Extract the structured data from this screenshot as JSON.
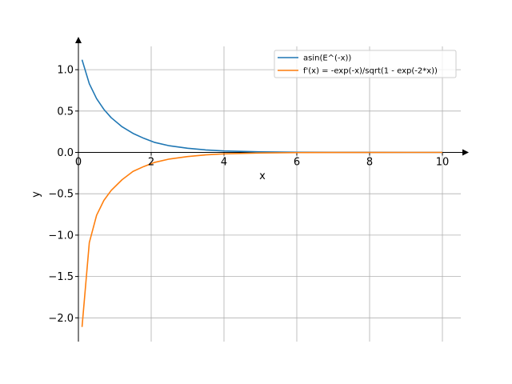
{
  "chart_data": {
    "type": "line",
    "title": "",
    "xlabel": "x",
    "ylabel": "y",
    "xlim": [
      0,
      10.5
    ],
    "ylim": [
      -2.25,
      1.3
    ],
    "grid": true,
    "legend_position": "top-right",
    "x_ticks": [
      0,
      2,
      4,
      6,
      8,
      10
    ],
    "x_tick_labels": [
      "0",
      "2",
      "4",
      "6",
      "8",
      "10"
    ],
    "y_ticks": [
      1.0,
      0.5,
      0.0,
      -0.5,
      -1.0,
      -1.5,
      -2.0
    ],
    "y_tick_labels": [
      "1.0",
      "0.5",
      "0.0",
      "−0.5",
      "−1.0",
      "−1.5",
      "−2.0"
    ],
    "series": [
      {
        "name": "asin(E^(-x))",
        "color": "#1f77b4",
        "x": [
          0.1,
          0.3,
          0.5,
          0.7,
          0.9,
          1.2,
          1.5,
          1.8,
          2.1,
          2.5,
          3.0,
          3.5,
          4.0,
          5.0,
          6.0,
          7.0,
          8.0,
          9.0,
          10.0
        ],
        "y": [
          1.12,
          0.83,
          0.65,
          0.52,
          0.42,
          0.31,
          0.23,
          0.17,
          0.12,
          0.08,
          0.05,
          0.03,
          0.018,
          0.007,
          0.0025,
          0.0009,
          0.0003,
          0.0001,
          5e-05
        ]
      },
      {
        "name": "f'(x) = -exp(-x)/sqrt(1 - exp(-2*x))",
        "color": "#ff7f0e",
        "x": [
          0.1,
          0.3,
          0.5,
          0.7,
          0.9,
          1.2,
          1.5,
          1.8,
          2.1,
          2.5,
          3.0,
          3.5,
          4.0,
          5.0,
          6.0,
          7.0,
          8.0,
          9.0,
          10.0
        ],
        "y": [
          -2.11,
          -1.09,
          -0.76,
          -0.58,
          -0.46,
          -0.33,
          -0.23,
          -0.17,
          -0.12,
          -0.08,
          -0.05,
          -0.03,
          -0.018,
          -0.007,
          -0.0025,
          -0.0009,
          -0.0003,
          -0.0001,
          -5e-05
        ]
      }
    ]
  }
}
